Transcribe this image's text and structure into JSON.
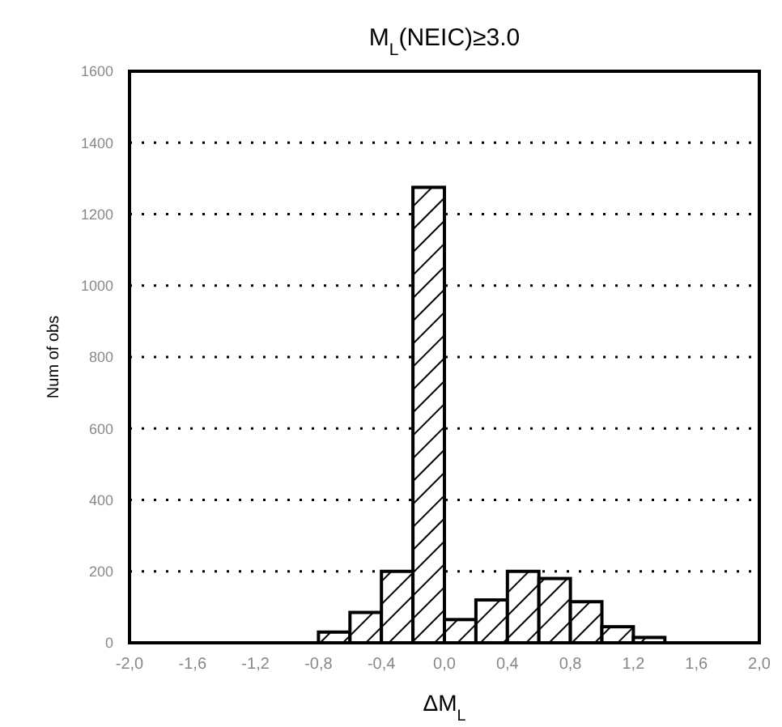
{
  "chart_data": {
    "type": "histogram",
    "title": "M$_{L}$(NEIC)≥3.0",
    "xlabel": "ΔM$_{L}$",
    "ylabel": "Num of obs",
    "bins": [
      -0.8,
      -0.6,
      -0.4,
      -0.2,
      0.0,
      0.2,
      0.4,
      0.6,
      0.8,
      1.0,
      1.2,
      1.4
    ],
    "values": [
      30,
      85,
      200,
      1275,
      65,
      120,
      200,
      180,
      115,
      45,
      15
    ],
    "color": "#000000",
    "xlim": [
      -2.0,
      2.0
    ],
    "xticks": [
      {
        "value": -2.0,
        "label": "-2,0"
      },
      {
        "value": -1.6,
        "label": "-1,6"
      },
      {
        "value": -1.2,
        "label": "-1,2"
      },
      {
        "value": -0.8,
        "label": "-0,8"
      },
      {
        "value": -0.4,
        "label": "-0,4"
      },
      {
        "value": 0.0,
        "label": "0,0"
      },
      {
        "value": 0.4,
        "label": "0,4"
      },
      {
        "value": 0.8,
        "label": "0,8"
      },
      {
        "value": 1.2,
        "label": "1,2"
      },
      {
        "value": 1.6,
        "label": "1,6"
      },
      {
        "value": 2.0,
        "label": "2,0"
      }
    ],
    "ylim": [
      0,
      1600
    ],
    "yticks": [
      0,
      200,
      400,
      600,
      800,
      1000,
      1200,
      1400,
      1600
    ],
    "grid": "y"
  }
}
